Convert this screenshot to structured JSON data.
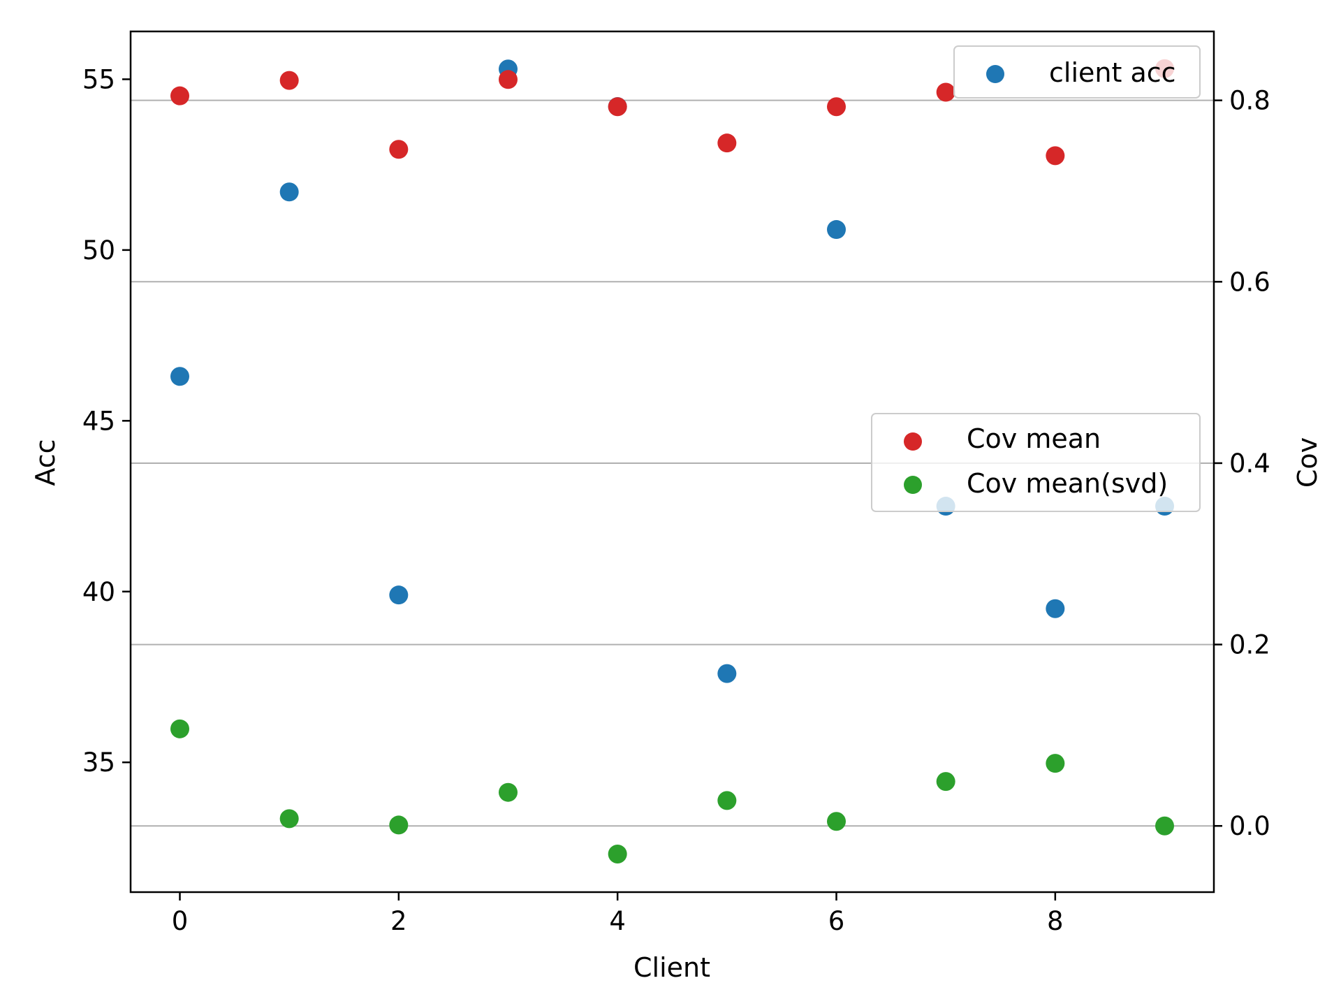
{
  "chart_data": {
    "type": "scatter",
    "xlabel": "Client",
    "ylabel_left": "Acc",
    "ylabel_right": "Cov",
    "x_ticks": [
      "0",
      "2",
      "4",
      "6",
      "8"
    ],
    "x_tick_values": [
      0,
      2,
      4,
      6,
      8
    ],
    "xlim": [
      -0.45,
      9.45
    ],
    "left_ticks": [
      "35",
      "40",
      "45",
      "50",
      "55"
    ],
    "left_tick_values": [
      35,
      40,
      45,
      50,
      55
    ],
    "left_ylim": [
      31.2,
      56.4
    ],
    "right_ticks": [
      "0.0",
      "0.2",
      "0.4",
      "0.6",
      "0.8"
    ],
    "right_tick_values": [
      0.0,
      0.2,
      0.4,
      0.6,
      0.8
    ],
    "right_ylim": [
      -0.073,
      0.876
    ],
    "grid": "horizontal lines at right-axis ticks",
    "x": [
      0,
      1,
      2,
      3,
      4,
      5,
      6,
      7,
      8,
      9
    ],
    "series": [
      {
        "name": "client acc",
        "axis": "left",
        "color": "#1f77b4",
        "values": [
          46.3,
          51.7,
          39.9,
          55.3,
          54.2,
          37.6,
          50.6,
          42.5,
          39.5,
          42.5
        ]
      },
      {
        "name": "Cov mean",
        "axis": "right",
        "color": "#d62728",
        "values": [
          0.805,
          0.822,
          0.746,
          0.823,
          0.793,
          0.753,
          0.793,
          0.809,
          0.739,
          0.835
        ]
      },
      {
        "name": "Cov mean(svd)",
        "axis": "right",
        "color": "#2ca02c",
        "values": [
          0.107,
          0.008,
          0.001,
          0.037,
          -0.031,
          0.028,
          0.005,
          0.049,
          0.069,
          0.0
        ]
      }
    ],
    "legends": [
      {
        "placement": "upper right",
        "entries": [
          "client acc"
        ]
      },
      {
        "placement": "center right",
        "entries": [
          "Cov mean",
          "Cov mean(svd)"
        ]
      }
    ]
  }
}
